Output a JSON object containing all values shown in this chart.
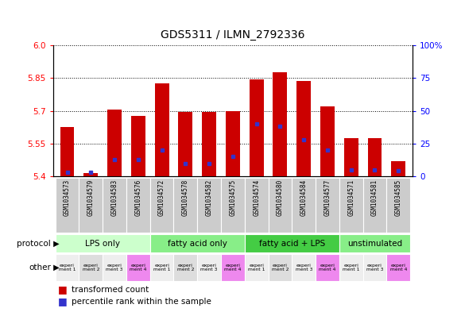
{
  "title": "GDS5311 / ILMN_2792336",
  "samples": [
    "GSM1034573",
    "GSM1034579",
    "GSM1034583",
    "GSM1034576",
    "GSM1034572",
    "GSM1034578",
    "GSM1034582",
    "GSM1034575",
    "GSM1034574",
    "GSM1034580",
    "GSM1034584",
    "GSM1034577",
    "GSM1034571",
    "GSM1034581",
    "GSM1034585"
  ],
  "red_values": [
    5.625,
    5.415,
    5.705,
    5.675,
    5.825,
    5.695,
    5.695,
    5.7,
    5.845,
    5.875,
    5.835,
    5.72,
    5.575,
    5.575,
    5.47
  ],
  "blue_values": [
    3,
    3,
    13,
    13,
    20,
    10,
    10,
    15,
    40,
    38,
    28,
    20,
    5,
    5,
    4
  ],
  "y_min": 5.4,
  "y_max": 6.0,
  "y_ticks_left": [
    5.4,
    5.55,
    5.7,
    5.85,
    6.0
  ],
  "y_ticks_right": [
    0,
    25,
    50,
    75,
    100
  ],
  "bar_color": "#cc0000",
  "blue_color": "#3333cc",
  "protocol_groups": [
    {
      "label": "LPS only",
      "start": 0,
      "end": 4,
      "color": "#ccffcc"
    },
    {
      "label": "fatty acid only",
      "start": 4,
      "end": 8,
      "color": "#88ee88"
    },
    {
      "label": "fatty acid + LPS",
      "start": 8,
      "end": 12,
      "color": "#44cc44"
    },
    {
      "label": "unstimulated",
      "start": 12,
      "end": 15,
      "color": "#88ee88"
    }
  ],
  "other_colors": [
    "#eeeeee",
    "#dddddd",
    "#eeeeee",
    "#ee88ee",
    "#eeeeee",
    "#dddddd",
    "#eeeeee",
    "#ee88ee",
    "#eeeeee",
    "#dddddd",
    "#eeeeee",
    "#ee88ee",
    "#eeeeee",
    "#eeeeee",
    "#ee88ee"
  ],
  "other_labels": [
    "experi\nment 1",
    "experi\nment 2",
    "experi\nment 3",
    "experi\nment 4",
    "experi\nment 1",
    "experi\nment 2",
    "experi\nment 3",
    "experi\nment 4",
    "experi\nment 1",
    "experi\nment 2",
    "experi\nment 3",
    "experi\nment 4",
    "experi\nment 1",
    "experi\nment 3",
    "experi\nment 4"
  ],
  "bg_color": "#ffffff",
  "sample_bg": "#cccccc",
  "bar_width": 0.6
}
